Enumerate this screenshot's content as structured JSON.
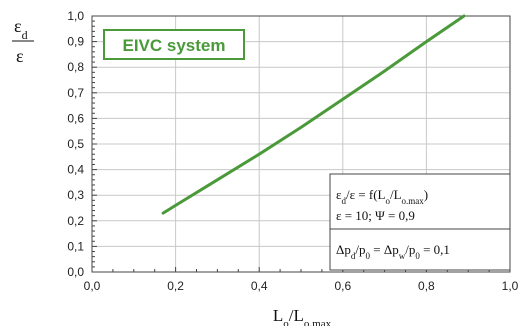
{
  "chart_data": {
    "type": "line",
    "title": "EIVC system",
    "ylabel_num": "ε",
    "ylabel_num_sub": "d",
    "ylabel_den": "ε",
    "xlabel_main": "L",
    "xlabel_main_sub": "o",
    "xlabel_sep": "/L",
    "xlabel_den_sub": "o.max",
    "xlim": [
      0,
      1
    ],
    "ylim": [
      0,
      1
    ],
    "x_tick_labels": [
      "0,0",
      "0,2",
      "0,4",
      "0,6",
      "0,8",
      "1,0"
    ],
    "y_tick_labels": [
      "0,0",
      "0,1",
      "0,2",
      "0,3",
      "0,4",
      "0,5",
      "0,6",
      "0,7",
      "0,8",
      "0,9",
      "1,0"
    ],
    "grid": true,
    "series": [
      {
        "color": "#4a9a3a",
        "x": [
          0.17,
          0.2,
          0.3,
          0.4,
          0.5,
          0.6,
          0.7,
          0.8,
          0.89
        ],
        "y": [
          0.23,
          0.26,
          0.36,
          0.46,
          0.565,
          0.675,
          0.785,
          0.9,
          1.0
        ]
      }
    ],
    "annotation": {
      "line1": "εd/ε = f(Lo/Lo.max)",
      "line2": "ε = 10; Ψ = 0,9",
      "line3": "Δpd/p0 = Δpw/p0 = 0,1"
    },
    "colors": {
      "line": "#4a9a3a",
      "badge_border": "#4a9a3a",
      "badge_text": "#4a9a3a",
      "grid": "#c8c8c8",
      "frame": "#444444"
    }
  }
}
